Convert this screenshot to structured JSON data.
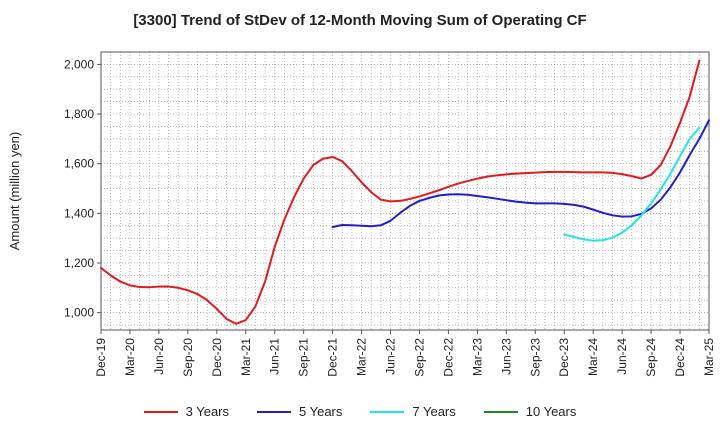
{
  "chart_data": {
    "type": "line",
    "title": "[3300]  Trend of StDev of 12-Month Moving Sum of Operating CF",
    "xlabel": "",
    "ylabel": "Amount (million yen)",
    "ylim": [
      930,
      2050
    ],
    "yticks": [
      1000,
      1200,
      1400,
      1600,
      1800,
      2000
    ],
    "ytick_labels": [
      "1,000",
      "1,200",
      "1,400",
      "1,600",
      "1,800",
      "2,000"
    ],
    "xtick_labels": [
      "Dec-19",
      "Mar-20",
      "Jun-20",
      "Sep-20",
      "Dec-20",
      "Mar-21",
      "Jun-21",
      "Sep-21",
      "Dec-21",
      "Mar-22",
      "Jun-22",
      "Sep-22",
      "Dec-22",
      "Mar-23",
      "Jun-23",
      "Sep-23",
      "Dec-23",
      "Mar-24",
      "Jun-24",
      "Sep-24",
      "Dec-24",
      "Mar-25"
    ],
    "grid": true,
    "legend_position": "bottom",
    "series": [
      {
        "name": "3 Years",
        "color": "#e31a1c",
        "start_month": 0,
        "values": [
          1180,
          1150,
          1125,
          1110,
          1103,
          1102,
          1105,
          1105,
          1100,
          1090,
          1075,
          1050,
          1015,
          975,
          955,
          970,
          1025,
          1125,
          1265,
          1375,
          1465,
          1540,
          1595,
          1620,
          1627,
          1610,
          1570,
          1525,
          1485,
          1455,
          1448,
          1450,
          1458,
          1468,
          1480,
          1493,
          1507,
          1520,
          1530,
          1540,
          1548,
          1553,
          1557,
          1560,
          1562,
          1564,
          1566,
          1567,
          1567,
          1566,
          1565,
          1565,
          1565,
          1563,
          1558,
          1550,
          1540,
          1555,
          1595,
          1670,
          1765,
          1870,
          2015
        ]
      },
      {
        "name": "5 Years",
        "color": "#1f1fcc",
        "start_month": 24,
        "values": [
          1345,
          1353,
          1352,
          1350,
          1348,
          1352,
          1370,
          1402,
          1430,
          1450,
          1462,
          1472,
          1476,
          1477,
          1475,
          1470,
          1465,
          1459,
          1453,
          1447,
          1443,
          1440,
          1440,
          1440,
          1438,
          1434,
          1427,
          1415,
          1402,
          1392,
          1387,
          1388,
          1398,
          1420,
          1455,
          1505,
          1565,
          1635,
          1700,
          1775
        ]
      },
      {
        "name": "7 Years",
        "color": "#22e5e5",
        "start_month": 48,
        "values": [
          1315,
          1305,
          1295,
          1290,
          1292,
          1302,
          1322,
          1352,
          1392,
          1440,
          1497,
          1560,
          1630,
          1700,
          1745
        ]
      },
      {
        "name": "10 Years",
        "color": "#1a8a1a",
        "start_month": 0,
        "values": []
      }
    ]
  }
}
